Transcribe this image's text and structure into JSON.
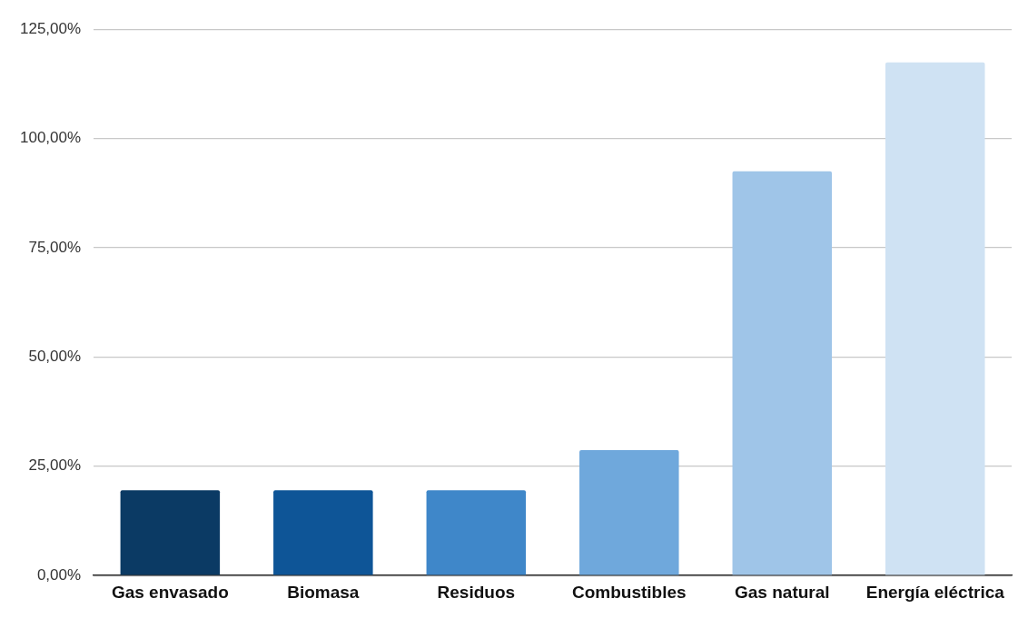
{
  "chart_data": {
    "type": "bar",
    "categories": [
      "Gas envasado",
      "Biomasa",
      "Residuos",
      "Combustibles",
      "Gas natural",
      "Energía eléctrica"
    ],
    "values": [
      19.5,
      19.5,
      19.5,
      28.7,
      92.5,
      117.4
    ],
    "colors": [
      "#0b3a64",
      "#0e5597",
      "#3f87c9",
      "#6fa8dc",
      "#9fc5e8",
      "#cfe2f3"
    ],
    "ylim": [
      0,
      125
    ],
    "yticks": [
      {
        "value": 0,
        "label": "0,00%"
      },
      {
        "value": 25,
        "label": "25,00%"
      },
      {
        "value": 50,
        "label": "50,00%"
      },
      {
        "value": 75,
        "label": "75,00%"
      },
      {
        "value": 100,
        "label": "100,00%"
      },
      {
        "value": 125,
        "label": "125,00%"
      }
    ],
    "grid": "y"
  }
}
